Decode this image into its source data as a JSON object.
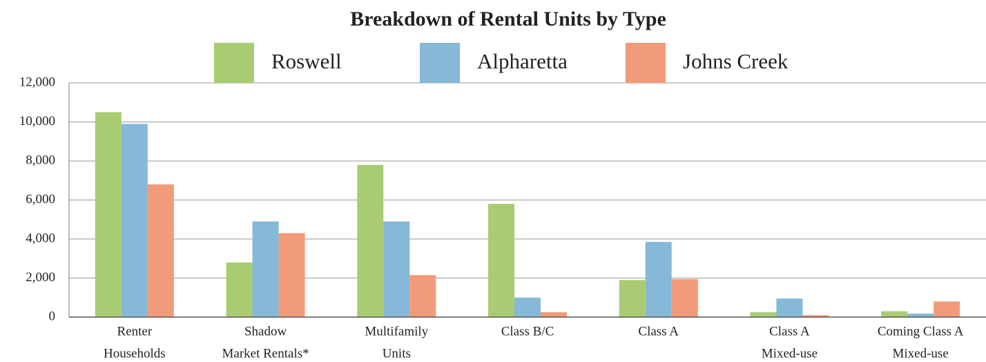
{
  "chart_data": {
    "type": "bar",
    "title": "Breakdown of Rental Units by Type",
    "categories": [
      [
        "Renter",
        "Households"
      ],
      [
        "Shadow",
        "Market Rentals*"
      ],
      [
        "Multifamily",
        "Units"
      ],
      [
        "Class B/C"
      ],
      [
        "Class A"
      ],
      [
        "Class A",
        "Mixed-use"
      ],
      [
        "Coming Class A",
        "Mixed-use"
      ]
    ],
    "series": [
      {
        "name": "Roswell",
        "color": "#a9cc73",
        "values": [
          10500,
          2800,
          7800,
          5800,
          1900,
          250,
          300
        ]
      },
      {
        "name": "Alpharetta",
        "color": "#86b8d8",
        "values": [
          9900,
          4900,
          4900,
          1000,
          3850,
          950,
          180
        ]
      },
      {
        "name": "Johns Creek",
        "color": "#f29b7a",
        "values": [
          6800,
          4300,
          2150,
          250,
          1950,
          100,
          800
        ]
      }
    ],
    "ylim": [
      0,
      12000
    ],
    "yticks": [
      0,
      {
        "value": 2000,
        "label": "2,000"
      },
      {
        "value": 4000,
        "label": "4,000"
      },
      {
        "value": 6000,
        "label": "6,000"
      },
      {
        "value": 8000,
        "label": "8,000"
      },
      {
        "value": 10000,
        "label": "10,000"
      },
      {
        "value": 12000,
        "label": "12,000"
      }
    ],
    "grid": true
  }
}
